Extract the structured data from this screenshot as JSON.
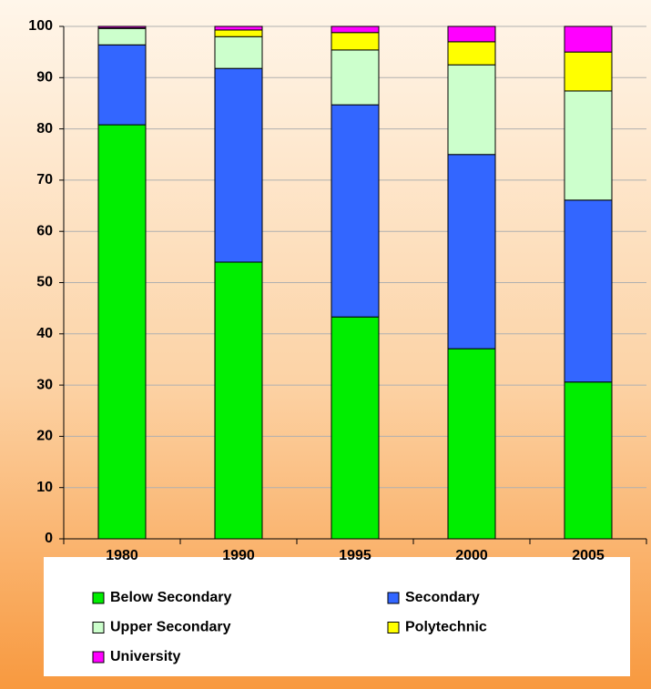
{
  "chart_data": {
    "type": "stacked_bar",
    "categories": [
      "1980",
      "1990",
      "1995",
      "2000",
      "2005"
    ],
    "series": [
      {
        "name": "Below Secondary",
        "color": "#00ee00",
        "values": [
          80.8,
          54.0,
          43.3,
          37.1,
          30.6
        ]
      },
      {
        "name": "Secondary",
        "color": "#3366ff",
        "values": [
          15.6,
          37.8,
          41.4,
          37.9,
          35.5
        ]
      },
      {
        "name": "Upper Secondary",
        "color": "#ccffcc",
        "values": [
          3.2,
          6.2,
          10.7,
          17.5,
          21.3
        ]
      },
      {
        "name": "Polytechnic",
        "color": "#ffff00",
        "values": [
          0.1,
          1.3,
          3.4,
          4.5,
          7.6
        ]
      },
      {
        "name": "University",
        "color": "#ff00ff",
        "values": [
          0.3,
          0.7,
          1.2,
          3.0,
          5.0
        ]
      }
    ],
    "ylim": [
      0,
      100
    ],
    "yticks": [
      0,
      10,
      20,
      30,
      40,
      50,
      60,
      70,
      80,
      90,
      100
    ],
    "grid": true,
    "legend": "bottom"
  }
}
